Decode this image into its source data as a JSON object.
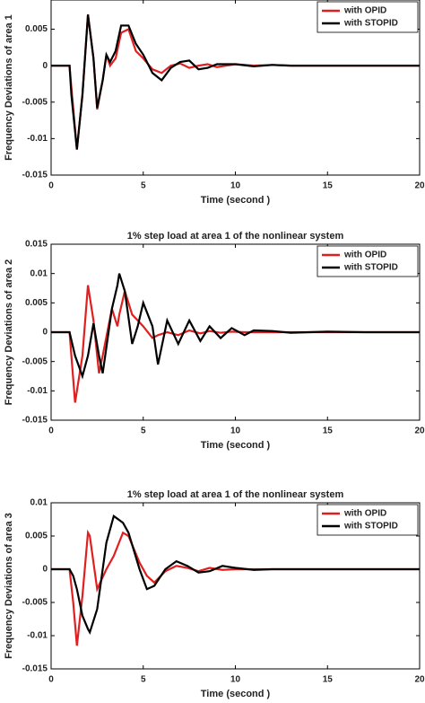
{
  "chart_data": [
    {
      "type": "line",
      "ylabel": "Frequency Deviations of area 1",
      "xlabel": "Time (second )",
      "legend": "upper right",
      "x": [
        0,
        1,
        1.1,
        1.4,
        1.7,
        2,
        2.3,
        2.5,
        2.8,
        3,
        3.2,
        3.5,
        3.8,
        4.2,
        4.6,
        5,
        5.5,
        6,
        6.5,
        7,
        7.5,
        8,
        8.5,
        9,
        10,
        11,
        12,
        13,
        15,
        17,
        20
      ],
      "xlim": [
        0,
        20
      ],
      "xticks": [
        0,
        5,
        10,
        15,
        20
      ],
      "ylim": [
        -0.015,
        0.009
      ],
      "yticks": [
        -0.015,
        -0.01,
        -0.005,
        0,
        0.005
      ],
      "series": [
        {
          "name": "with OPID",
          "color": "#e02020",
          "values": [
            0,
            0,
            -0.003,
            -0.0115,
            -0.004,
            0.007,
            0.001,
            -0.006,
            -0.002,
            0.0015,
            0,
            0.001,
            0.0045,
            0.005,
            0.002,
            0.001,
            -0.0005,
            -0.001,
            0,
            0.0003,
            -0.0003,
            0,
            0.0002,
            -0.0002,
            0.0002,
            0,
            0.0001,
            0,
            0,
            0,
            0
          ]
        },
        {
          "name": "with STOPID",
          "color": "#000000",
          "values": [
            0,
            0,
            -0.004,
            -0.0115,
            -0.004,
            0.007,
            0.001,
            -0.0058,
            -0.002,
            0.0015,
            0.0005,
            0.002,
            0.0055,
            0.0055,
            0.003,
            0.0015,
            -0.001,
            -0.002,
            -0.0003,
            0.0005,
            0.0007,
            -0.0005,
            -0.0003,
            0.0002,
            0.0002,
            -0.0001,
            0.0001,
            0,
            0,
            0,
            0
          ]
        }
      ]
    },
    {
      "type": "line",
      "title": "1% step load at area 1 of the nonlinear system",
      "ylabel": "Frequency Deviations of area 2",
      "xlabel": "Time (second )",
      "legend": "upper right",
      "x": [
        0,
        1,
        1.3,
        1.7,
        2,
        2.3,
        2.6,
        2.8,
        3.3,
        3.6,
        3.7,
        4,
        4.4,
        4.7,
        5,
        5.5,
        5.8,
        6.3,
        6.9,
        7.5,
        8.1,
        8.6,
        9.2,
        9.8,
        10.5,
        11,
        12,
        13,
        15,
        17,
        20
      ],
      "xlim": [
        0,
        20
      ],
      "xticks": [
        0,
        5,
        10,
        15,
        20
      ],
      "ylim": [
        -0.015,
        0.015
      ],
      "yticks": [
        -0.015,
        -0.01,
        -0.005,
        0,
        0.005,
        0.01,
        0.015
      ],
      "series": [
        {
          "name": "with OPID",
          "color": "#e02020",
          "values": [
            0,
            0,
            -0.012,
            -0.004,
            0.008,
            0.002,
            -0.007,
            -0.004,
            0.004,
            0.001,
            0.003,
            0.007,
            0.003,
            0.002,
            0.001,
            -0.001,
            -0.0005,
            0,
            -0.0005,
            0.0003,
            -0.0002,
            0.0002,
            -0.0001,
            0.0001,
            0,
            0,
            0,
            0,
            0,
            0,
            0
          ]
        },
        {
          "name": "with STOPID",
          "color": "#000000",
          "values": [
            0,
            0,
            -0.004,
            -0.0075,
            -0.004,
            0.0015,
            -0.004,
            -0.007,
            0.004,
            0.008,
            0.01,
            0.007,
            -0.002,
            0.001,
            0.005,
            0.001,
            -0.0055,
            0.002,
            -0.002,
            0.002,
            -0.0015,
            0.001,
            -0.001,
            0.0007,
            -0.0005,
            0.0003,
            0.0002,
            -0.0001,
            0.0001,
            0,
            0
          ]
        }
      ]
    },
    {
      "type": "line",
      "title": "1% step load at area 1 of the nonlinear system",
      "ylabel": "Frequency Deviations of area 3",
      "xlabel": "Time (second )",
      "legend": "upper right",
      "x": [
        0,
        1,
        1.2,
        1.4,
        1.7,
        2,
        2.1,
        2.5,
        3,
        3.4,
        3.9,
        4.2,
        4.8,
        5.2,
        5.6,
        6.2,
        6.8,
        7.4,
        8,
        8.6,
        9.3,
        10,
        11,
        12,
        13,
        15,
        17,
        20
      ],
      "xlim": [
        0,
        20
      ],
      "xticks": [
        0,
        5,
        10,
        15,
        20
      ],
      "ylim": [
        -0.015,
        0.01
      ],
      "yticks": [
        -0.015,
        -0.01,
        -0.005,
        0,
        0.005,
        0.01
      ],
      "series": [
        {
          "name": "with OPID",
          "color": "#e02020",
          "values": [
            0,
            0,
            -0.005,
            -0.0115,
            -0.004,
            0.0055,
            0.005,
            -0.003,
            0,
            0.002,
            0.0055,
            0.005,
            0.001,
            -0.001,
            -0.002,
            -0.0003,
            0.0005,
            0.0002,
            -0.0003,
            0.0002,
            -0.0001,
            0,
            0,
            0,
            0,
            0,
            0,
            0
          ]
        },
        {
          "name": "with STOPID",
          "color": "#000000",
          "values": [
            0,
            0,
            -0.001,
            -0.003,
            -0.007,
            -0.009,
            -0.0095,
            -0.006,
            0.004,
            0.008,
            0.007,
            0.0055,
            0,
            -0.003,
            -0.0025,
            0,
            0.0012,
            0.0005,
            -0.0005,
            -0.0003,
            0.0005,
            0.0002,
            -0.0001,
            0,
            0,
            0,
            0,
            0
          ]
        }
      ]
    }
  ]
}
